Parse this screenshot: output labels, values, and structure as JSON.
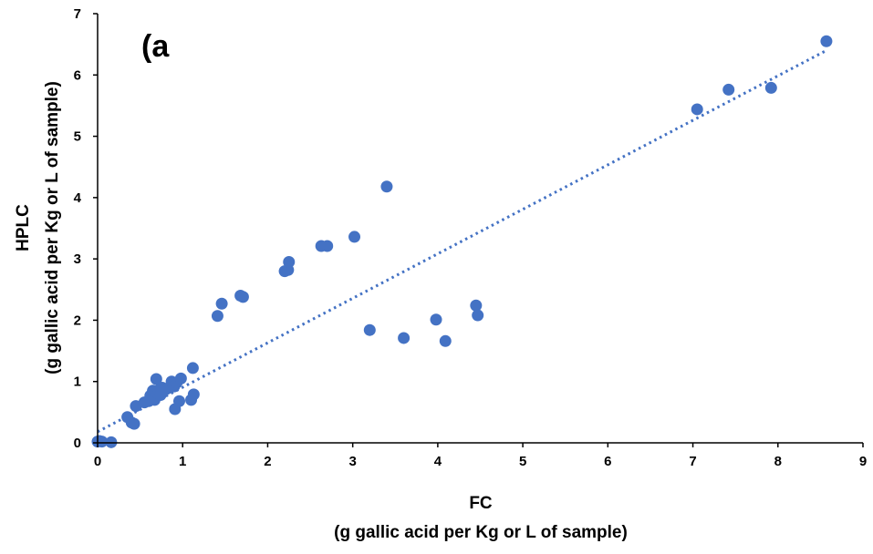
{
  "chart_data": {
    "type": "scatter",
    "panel_label": "(a",
    "xlabel": "FC",
    "xlabel_sub": "(g gallic acid per Kg or L of sample)",
    "ylabel": "HPLC",
    "ylabel_sub": "(g gallic acid per Kg or L of sample)",
    "xlim": [
      0,
      9
    ],
    "ylim": [
      0,
      7
    ],
    "xticks": [
      0,
      1,
      2,
      3,
      4,
      5,
      6,
      7,
      8,
      9
    ],
    "yticks": [
      0,
      1,
      2,
      3,
      4,
      5,
      6,
      7
    ],
    "grid": false,
    "colors": {
      "points": "#4472C4",
      "trendline": "#4472C4",
      "axes": "#000000"
    },
    "trendline": {
      "style": "dotted",
      "x": [
        0,
        8.57
      ],
      "y": [
        0.18,
        6.4
      ]
    },
    "series": [
      {
        "points": [
          [
            0.0,
            0.02
          ],
          [
            0.02,
            0.03
          ],
          [
            0.05,
            0.02
          ],
          [
            0.16,
            0.01
          ],
          [
            0.35,
            0.42
          ],
          [
            0.4,
            0.33
          ],
          [
            0.43,
            0.31
          ],
          [
            0.45,
            0.6
          ],
          [
            0.55,
            0.66
          ],
          [
            0.6,
            0.68
          ],
          [
            0.62,
            0.77
          ],
          [
            0.65,
            0.85
          ],
          [
            0.67,
            0.7
          ],
          [
            0.69,
            1.04
          ],
          [
            0.71,
            0.8
          ],
          [
            0.72,
            0.86
          ],
          [
            0.74,
            0.78
          ],
          [
            0.76,
            0.9
          ],
          [
            0.8,
            0.87
          ],
          [
            0.85,
            0.9
          ],
          [
            0.87,
            1.0
          ],
          [
            0.9,
            0.92
          ],
          [
            0.91,
            0.55
          ],
          [
            0.93,
            0.98
          ],
          [
            0.96,
            0.68
          ],
          [
            0.98,
            1.05
          ],
          [
            1.1,
            0.7
          ],
          [
            1.12,
            1.22
          ],
          [
            1.13,
            0.79
          ],
          [
            1.41,
            2.07
          ],
          [
            1.46,
            2.27
          ],
          [
            1.68,
            2.4
          ],
          [
            1.71,
            2.38
          ],
          [
            2.2,
            2.8
          ],
          [
            2.24,
            2.82
          ],
          [
            2.25,
            2.95
          ],
          [
            2.63,
            3.21
          ],
          [
            2.7,
            3.21
          ],
          [
            3.02,
            3.36
          ],
          [
            3.2,
            1.84
          ],
          [
            3.4,
            4.18
          ],
          [
            3.6,
            1.71
          ],
          [
            3.98,
            2.01
          ],
          [
            4.09,
            1.66
          ],
          [
            4.45,
            2.24
          ],
          [
            4.47,
            2.08
          ],
          [
            7.05,
            5.44
          ],
          [
            7.42,
            5.76
          ],
          [
            7.92,
            5.79
          ],
          [
            8.57,
            6.55
          ]
        ]
      }
    ]
  }
}
